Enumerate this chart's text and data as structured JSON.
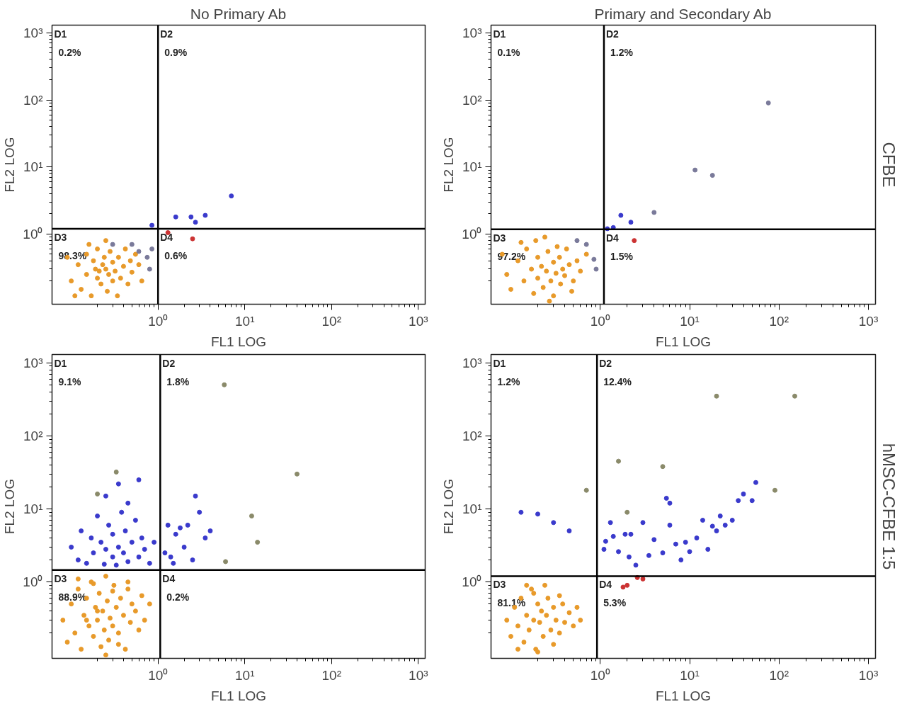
{
  "chart_data": [
    {
      "type": "scatter",
      "title": "No Primary Ab",
      "xlabel": "FL1 LOG",
      "ylabel": "FL2 LOG",
      "log": "xy",
      "marker": "circle",
      "xlim": [
        0.06,
        1200
      ],
      "ylim": [
        0.09,
        1300
      ],
      "xticks": [
        {
          "value": 1,
          "label": "10⁰"
        },
        {
          "value": 10,
          "label": "10¹"
        },
        {
          "value": 100,
          "label": "10²"
        },
        {
          "value": 1000,
          "label": "10³"
        }
      ],
      "yticks": [
        {
          "value": 1,
          "label": "10⁰"
        },
        {
          "value": 10,
          "label": "10¹"
        },
        {
          "value": 100,
          "label": "10²"
        },
        {
          "value": 1000,
          "label": "10³"
        }
      ],
      "ref_lines": [
        {
          "axis": "x",
          "value": 1.0,
          "color": "#000000"
        },
        {
          "axis": "y",
          "value": 1.2,
          "color": "#000000"
        }
      ],
      "annotations": [
        "D1",
        "0.2%",
        "D2",
        "0.9%",
        "D3",
        "98.3%",
        "D4",
        "0.6%"
      ],
      "series": [
        {
          "color": "#e89a2a",
          "x": [
            0.1,
            0.12,
            0.13,
            0.15,
            0.15,
            0.17,
            0.18,
            0.19,
            0.2,
            0.2,
            0.21,
            0.22,
            0.23,
            0.24,
            0.25,
            0.26,
            0.27,
            0.28,
            0.3,
            0.3,
            0.32,
            0.34,
            0.35,
            0.37,
            0.4,
            0.42,
            0.45,
            0.48,
            0.5,
            0.55,
            0.6,
            0.65,
            0.09,
            0.11,
            0.16,
            0.25
          ],
          "values": [
            0.2,
            0.35,
            0.15,
            0.5,
            0.25,
            0.12,
            0.4,
            0.3,
            0.22,
            0.6,
            0.28,
            0.18,
            0.35,
            0.45,
            0.3,
            0.14,
            0.25,
            0.55,
            0.2,
            0.38,
            0.28,
            0.12,
            0.45,
            0.22,
            0.33,
            0.6,
            0.18,
            0.4,
            0.27,
            0.5,
            0.35,
            0.2,
            0.45,
            0.12,
            0.7,
            0.8
          ]
        },
        {
          "color": "#7a7a9a",
          "x": [
            0.5,
            0.6,
            0.75,
            0.85,
            0.8,
            0.3
          ],
          "values": [
            0.7,
            0.55,
            0.45,
            0.6,
            0.3,
            0.7
          ]
        },
        {
          "color": "#3a3acc",
          "x": [
            0.85,
            1.6,
            2.4,
            3.5,
            7,
            2.7
          ],
          "values": [
            1.35,
            1.8,
            1.8,
            1.9,
            3.7,
            1.5
          ]
        },
        {
          "color": "#cc3333",
          "x": [
            2.5,
            1.3
          ],
          "values": [
            0.85,
            1.05
          ]
        }
      ]
    },
    {
      "type": "scatter",
      "title": "Primary and Secondary Ab",
      "xlabel": "FL1 LOG",
      "ylabel": "FL2 LOG",
      "log": "xy",
      "marker": "circle",
      "xlim": [
        0.06,
        1200
      ],
      "ylim": [
        0.09,
        1300
      ],
      "xticks": [
        {
          "value": 1,
          "label": "10⁰"
        },
        {
          "value": 10,
          "label": "10¹"
        },
        {
          "value": 100,
          "label": "10²"
        },
        {
          "value": 1000,
          "label": "10³"
        }
      ],
      "yticks": [
        {
          "value": 1,
          "label": "10⁰"
        },
        {
          "value": 10,
          "label": "10¹"
        },
        {
          "value": 100,
          "label": "10²"
        },
        {
          "value": 1000,
          "label": "10³"
        }
      ],
      "ref_lines": [
        {
          "axis": "x",
          "value": 1.1,
          "color": "#000000"
        },
        {
          "axis": "y",
          "value": 1.18,
          "color": "#000000"
        }
      ],
      "annotations": [
        "D1",
        "0.1%",
        "D2",
        "1.2%",
        "D3",
        "97.2%",
        "D4",
        "1.5%",
        "CFBE"
      ],
      "series": [
        {
          "color": "#e89a2a",
          "x": [
            0.09,
            0.1,
            0.12,
            0.14,
            0.15,
            0.17,
            0.18,
            0.2,
            0.2,
            0.22,
            0.23,
            0.25,
            0.26,
            0.28,
            0.3,
            0.3,
            0.32,
            0.35,
            0.36,
            0.38,
            0.4,
            0.42,
            0.45,
            0.5,
            0.55,
            0.6,
            0.7,
            0.13,
            0.19,
            0.27,
            0.33,
            0.48,
            0.08,
            0.24
          ],
          "values": [
            0.25,
            0.15,
            0.4,
            0.2,
            0.6,
            0.3,
            0.13,
            0.45,
            0.22,
            0.33,
            0.16,
            0.28,
            0.55,
            0.2,
            0.38,
            0.12,
            0.26,
            0.45,
            0.18,
            0.3,
            0.24,
            0.6,
            0.35,
            0.2,
            0.4,
            0.28,
            0.5,
            0.75,
            0.8,
            0.1,
            0.65,
            0.14,
            0.5,
            0.9
          ]
        },
        {
          "color": "#7a7a9a",
          "x": [
            76,
            11.5,
            18,
            4,
            0.7,
            0.85,
            0.9,
            0.55
          ],
          "values": [
            90,
            9,
            7.5,
            2.1,
            0.7,
            0.42,
            0.3,
            0.8
          ]
        },
        {
          "color": "#3a3acc",
          "x": [
            1.7,
            2.2,
            1.2,
            1.4
          ],
          "values": [
            1.9,
            1.5,
            1.2,
            1.25
          ]
        },
        {
          "color": "#cc3333",
          "x": [
            2.4
          ],
          "values": [
            0.8
          ]
        }
      ]
    },
    {
      "type": "scatter",
      "xlabel": "FL1 LOG",
      "ylabel": "FL2 LOG",
      "log": "xy",
      "marker": "circle",
      "xlim": [
        0.06,
        1200
      ],
      "ylim": [
        0.09,
        1300
      ],
      "xticks": [
        {
          "value": 1,
          "label": "10⁰"
        },
        {
          "value": 10,
          "label": "10¹"
        },
        {
          "value": 100,
          "label": "10²"
        },
        {
          "value": 1000,
          "label": "10³"
        }
      ],
      "yticks": [
        {
          "value": 1,
          "label": "10⁰"
        },
        {
          "value": 10,
          "label": "10¹"
        },
        {
          "value": 100,
          "label": "10²"
        },
        {
          "value": 1000,
          "label": "10³"
        }
      ],
      "ref_lines": [
        {
          "axis": "x",
          "value": 1.06,
          "color": "#000000"
        },
        {
          "axis": "y",
          "value": 1.46,
          "color": "#000000"
        }
      ],
      "annotations": [
        "D1",
        "9.1%",
        "D2",
        "1.8%",
        "D3",
        "88.9%",
        "D4",
        "0.2%"
      ],
      "series": [
        {
          "color": "#e89a2a",
          "x": [
            0.08,
            0.09,
            0.1,
            0.11,
            0.12,
            0.13,
            0.14,
            0.15,
            0.16,
            0.17,
            0.18,
            0.19,
            0.2,
            0.21,
            0.22,
            0.23,
            0.24,
            0.25,
            0.26,
            0.27,
            0.28,
            0.3,
            0.31,
            0.33,
            0.35,
            0.37,
            0.4,
            0.42,
            0.45,
            0.48,
            0.5,
            0.55,
            0.6,
            0.65,
            0.7,
            0.8,
            0.12,
            0.18,
            0.25,
            0.3,
            0.2,
            0.15,
            0.35,
            0.45
          ],
          "values": [
            0.3,
            0.15,
            0.5,
            0.2,
            0.8,
            0.12,
            0.35,
            0.6,
            0.25,
            1.0,
            0.18,
            0.45,
            0.3,
            0.7,
            0.13,
            0.4,
            0.22,
            1.2,
            0.55,
            0.16,
            0.32,
            0.25,
            0.9,
            0.45,
            0.2,
            0.6,
            0.35,
            0.12,
            0.8,
            0.28,
            0.5,
            0.4,
            0.22,
            0.65,
            0.3,
            0.5,
            1.1,
            0.95,
            0.1,
            0.75,
            0.4,
            0.3,
            0.14,
            1.0
          ]
        },
        {
          "color": "#3a3acc",
          "x": [
            0.1,
            0.12,
            0.13,
            0.15,
            0.17,
            0.18,
            0.2,
            0.22,
            0.24,
            0.25,
            0.27,
            0.3,
            0.3,
            0.33,
            0.35,
            0.38,
            0.4,
            0.42,
            0.45,
            0.5,
            0.55,
            0.6,
            0.65,
            0.7,
            0.8,
            0.9,
            1.2,
            1.3,
            1.5,
            1.6,
            1.8,
            2,
            2.2,
            2.5,
            2.7,
            3,
            3.5,
            4,
            0.35,
            0.45,
            0.6,
            0.25,
            1.4
          ],
          "values": [
            3,
            2,
            5,
            1.8,
            4,
            2.5,
            8,
            3.5,
            1.75,
            2.8,
            6,
            2.2,
            4.5,
            1.7,
            3,
            9,
            2.5,
            5,
            1.9,
            3.5,
            7,
            2.2,
            4,
            2.8,
            1.8,
            3.5,
            2.5,
            6,
            1.8,
            4.5,
            5.5,
            3,
            6,
            2,
            15,
            9,
            4,
            5,
            22,
            12,
            25,
            15,
            2.2
          ]
        },
        {
          "color": "#8a8a6a",
          "x": [
            5.8,
            40,
            12,
            14,
            6,
            0.33,
            0.2
          ],
          "values": [
            500,
            30,
            8,
            3.5,
            1.9,
            32,
            16
          ]
        }
      ]
    },
    {
      "type": "scatter",
      "xlabel": "FL1 LOG",
      "ylabel": "FL2 LOG",
      "log": "xy",
      "marker": "circle",
      "xlim": [
        0.06,
        1200
      ],
      "ylim": [
        0.09,
        1300
      ],
      "xticks": [
        {
          "value": 1,
          "label": "10⁰"
        },
        {
          "value": 10,
          "label": "10¹"
        },
        {
          "value": 100,
          "label": "10²"
        },
        {
          "value": 1000,
          "label": "10³"
        }
      ],
      "yticks": [
        {
          "value": 1,
          "label": "10⁰"
        },
        {
          "value": 10,
          "label": "10¹"
        },
        {
          "value": 100,
          "label": "10²"
        },
        {
          "value": 1000,
          "label": "10³"
        }
      ],
      "ref_lines": [
        {
          "axis": "x",
          "value": 0.92,
          "color": "#000000"
        },
        {
          "axis": "y",
          "value": 1.2,
          "color": "#000000"
        }
      ],
      "annotations": [
        "D1",
        "1.2%",
        "D2",
        "12.4%",
        "D3",
        "81.1%",
        "D4",
        "5.3%",
        "hMSC-CFBE 1:5"
      ],
      "series": [
        {
          "color": "#e89a2a",
          "x": [
            0.09,
            0.1,
            0.11,
            0.12,
            0.13,
            0.14,
            0.15,
            0.16,
            0.17,
            0.18,
            0.19,
            0.2,
            0.21,
            0.22,
            0.23,
            0.25,
            0.26,
            0.28,
            0.3,
            0.32,
            0.35,
            0.38,
            0.4,
            0.45,
            0.5,
            0.55,
            0.6,
            0.12,
            0.18,
            0.24,
            0.3,
            0.15,
            0.2,
            0.35
          ],
          "values": [
            0.3,
            0.18,
            0.45,
            0.25,
            0.6,
            0.15,
            0.35,
            0.22,
            0.8,
            0.3,
            0.12,
            0.5,
            0.28,
            0.4,
            0.18,
            0.35,
            0.6,
            0.22,
            0.45,
            0.3,
            0.2,
            0.5,
            0.28,
            0.38,
            0.25,
            0.45,
            0.3,
            0.12,
            0.7,
            0.9,
            0.14,
            0.9,
            0.11,
            0.65
          ]
        },
        {
          "color": "#3a3acc",
          "x": [
            1.1,
            1.15,
            1.3,
            1.6,
            1.9,
            2.1,
            2.5,
            3,
            3.5,
            4,
            5,
            5.5,
            6,
            7,
            8,
            9,
            10,
            12,
            14,
            16,
            18,
            20,
            22,
            25,
            30,
            35,
            40,
            50,
            55,
            1.4,
            2.2,
            6,
            0.13,
            0.2,
            0.3,
            0.45
          ],
          "values": [
            2.8,
            3.6,
            6.5,
            2.6,
            4.5,
            2.2,
            1.7,
            6.5,
            2.3,
            3.8,
            2.5,
            14,
            6,
            3.3,
            2,
            3.5,
            2.6,
            4,
            7,
            2.8,
            5.8,
            5,
            8,
            6,
            7,
            13,
            16,
            13,
            23,
            4.2,
            4.5,
            12,
            9,
            8.5,
            6.5,
            5
          ]
        },
        {
          "color": "#cc3333",
          "x": [
            2,
            3,
            2.6,
            1.8
          ],
          "values": [
            0.9,
            1.1,
            1.15,
            0.85
          ]
        },
        {
          "color": "#8a8a6a",
          "x": [
            20,
            150,
            5,
            1.6,
            0.7,
            2,
            90
          ],
          "values": [
            350,
            350,
            38,
            45,
            18,
            9,
            18
          ]
        }
      ]
    }
  ]
}
